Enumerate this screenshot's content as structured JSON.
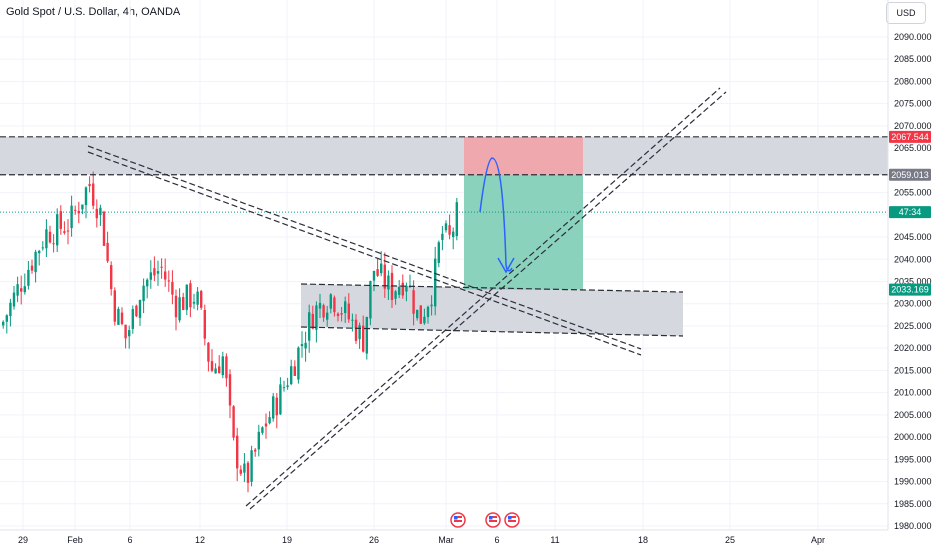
{
  "header": {
    "title": "Gold Spot / U.S. Dollar, 4h, OANDA",
    "currency_button": "USD"
  },
  "chart_data": {
    "type": "candlestick",
    "title": "Gold Spot / U.S. Dollar, 4h, OANDA",
    "y_axis": {
      "ylim": [
        1980,
        2097
      ],
      "ticks": [
        "2090.000",
        "2085.000",
        "2080.000",
        "2075.000",
        "2070.000",
        "2065.000",
        "2055.000",
        "2045.000",
        "2040.000",
        "2035.000",
        "2030.000",
        "2025.000",
        "2020.000",
        "2015.000",
        "2010.000",
        "2005.000",
        "2000.000",
        "1995.000",
        "1990.000",
        "1985.000",
        "1980.000"
      ]
    },
    "x_axis": {
      "ticks": [
        "29",
        "Feb",
        "6",
        "12",
        "19",
        "26",
        "Mar",
        "6",
        "11",
        "18",
        "25",
        "Apr"
      ]
    },
    "price_labels": [
      {
        "text": "2067.544",
        "value": 2067.544,
        "color": "#f23645"
      },
      {
        "text": "2059.013",
        "value": 2059.013,
        "color": "#787b86"
      },
      {
        "text": "47:34",
        "value": 2050.6,
        "color": "#089981"
      },
      {
        "text": "2033.169",
        "value": 2033.169,
        "color": "#089981"
      }
    ],
    "current_price": 2050.6,
    "zones": [
      {
        "name": "resistance-zone",
        "from": 2059.013,
        "to": 2067.544,
        "color": "#d1d4dc"
      },
      {
        "name": "support-zone",
        "from": 2023,
        "to": 2034,
        "color": "#d1d4dc"
      }
    ],
    "position": {
      "type": "short",
      "entry": 2059.013,
      "stop": 2067.544,
      "target": 2033.169,
      "stop_color": "#f2a3a8",
      "target_color": "#7ecdb6"
    },
    "colors": {
      "up": "#089981",
      "down": "#f23645",
      "line": "#2a2e39",
      "arrow": "#2962ff"
    }
  }
}
